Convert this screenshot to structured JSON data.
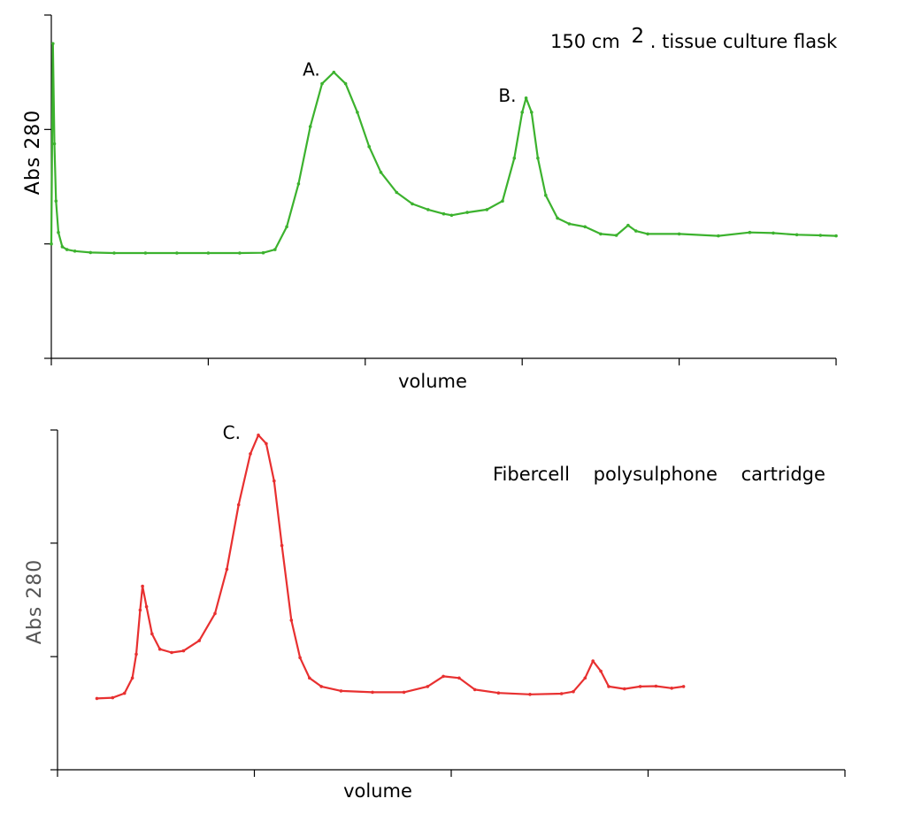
{
  "chart_data": [
    {
      "type": "line",
      "ylabel": "Abs 280",
      "xlabel": "volume",
      "annotation": {
        "text_prefix": "150 cm",
        "superscript": "2",
        "text_suffix": ". tissue culture flask"
      },
      "peak_labels": [
        {
          "label": "A.",
          "x": 0.365,
          "y": 0.8
        },
        {
          "label": "B.",
          "x": 0.615,
          "y": 0.71
        }
      ],
      "xlim": [
        0,
        1
      ],
      "ylim": [
        -0.2,
        1.0
      ],
      "x_ticks": [
        0,
        0.2,
        0.4,
        0.6,
        0.8,
        1.0
      ],
      "y_ticks": [
        -0.2,
        0.2,
        0.6,
        1.0
      ],
      "grid": false,
      "series": [
        {
          "color": "#3cb22e",
          "points": [
            [
              0.0,
              0.2
            ],
            [
              0.002,
              0.9
            ],
            [
              0.004,
              0.55
            ],
            [
              0.006,
              0.35
            ],
            [
              0.009,
              0.24
            ],
            [
              0.014,
              0.19
            ],
            [
              0.02,
              0.18
            ],
            [
              0.03,
              0.175
            ],
            [
              0.05,
              0.17
            ],
            [
              0.08,
              0.168
            ],
            [
              0.12,
              0.168
            ],
            [
              0.16,
              0.168
            ],
            [
              0.2,
              0.168
            ],
            [
              0.24,
              0.168
            ],
            [
              0.27,
              0.169
            ],
            [
              0.285,
              0.18
            ],
            [
              0.3,
              0.26
            ],
            [
              0.315,
              0.41
            ],
            [
              0.33,
              0.61
            ],
            [
              0.345,
              0.76
            ],
            [
              0.36,
              0.8
            ],
            [
              0.375,
              0.76
            ],
            [
              0.39,
              0.66
            ],
            [
              0.405,
              0.54
            ],
            [
              0.42,
              0.45
            ],
            [
              0.44,
              0.38
            ],
            [
              0.46,
              0.34
            ],
            [
              0.48,
              0.32
            ],
            [
              0.5,
              0.305
            ],
            [
              0.51,
              0.3
            ],
            [
              0.53,
              0.31
            ],
            [
              0.555,
              0.32
            ],
            [
              0.575,
              0.35
            ],
            [
              0.59,
              0.5
            ],
            [
              0.6,
              0.66
            ],
            [
              0.605,
              0.71
            ],
            [
              0.612,
              0.66
            ],
            [
              0.62,
              0.5
            ],
            [
              0.63,
              0.37
            ],
            [
              0.645,
              0.29
            ],
            [
              0.66,
              0.27
            ],
            [
              0.68,
              0.26
            ],
            [
              0.7,
              0.235
            ],
            [
              0.72,
              0.23
            ],
            [
              0.735,
              0.265
            ],
            [
              0.745,
              0.245
            ],
            [
              0.76,
              0.235
            ],
            [
              0.8,
              0.235
            ],
            [
              0.85,
              0.228
            ],
            [
              0.89,
              0.24
            ],
            [
              0.92,
              0.238
            ],
            [
              0.95,
              0.232
            ],
            [
              0.98,
              0.23
            ],
            [
              1.0,
              0.228
            ]
          ]
        }
      ]
    },
    {
      "type": "line",
      "ylabel": "Abs 280",
      "xlabel": "volume",
      "annotation": {
        "text": "Fibercell    polysulphone    cartridge"
      },
      "peak_labels": [
        {
          "label": "C.",
          "x": 0.255,
          "y": 0.985
        }
      ],
      "xlim": [
        0,
        1
      ],
      "ylim": [
        0,
        1.0
      ],
      "x_ticks": [
        0,
        0.25,
        0.5,
        0.75,
        1.0
      ],
      "y_ticks": [
        0,
        0.333,
        0.667,
        1.0
      ],
      "grid": false,
      "series": [
        {
          "color": "#e83030",
          "points": [
            [
              0.05,
              0.21
            ],
            [
              0.07,
              0.212
            ],
            [
              0.085,
              0.225
            ],
            [
              0.095,
              0.27
            ],
            [
              0.1,
              0.34
            ],
            [
              0.105,
              0.47
            ],
            [
              0.108,
              0.54
            ],
            [
              0.113,
              0.48
            ],
            [
              0.12,
              0.4
            ],
            [
              0.13,
              0.355
            ],
            [
              0.145,
              0.345
            ],
            [
              0.16,
              0.35
            ],
            [
              0.18,
              0.38
            ],
            [
              0.2,
              0.46
            ],
            [
              0.215,
              0.59
            ],
            [
              0.23,
              0.78
            ],
            [
              0.245,
              0.93
            ],
            [
              0.255,
              0.985
            ],
            [
              0.265,
              0.96
            ],
            [
              0.275,
              0.85
            ],
            [
              0.285,
              0.66
            ],
            [
              0.297,
              0.44
            ],
            [
              0.308,
              0.33
            ],
            [
              0.32,
              0.27
            ],
            [
              0.335,
              0.245
            ],
            [
              0.36,
              0.232
            ],
            [
              0.4,
              0.228
            ],
            [
              0.44,
              0.228
            ],
            [
              0.47,
              0.245
            ],
            [
              0.49,
              0.275
            ],
            [
              0.51,
              0.27
            ],
            [
              0.53,
              0.236
            ],
            [
              0.56,
              0.226
            ],
            [
              0.6,
              0.222
            ],
            [
              0.64,
              0.224
            ],
            [
              0.655,
              0.23
            ],
            [
              0.67,
              0.27
            ],
            [
              0.68,
              0.32
            ],
            [
              0.69,
              0.29
            ],
            [
              0.7,
              0.245
            ],
            [
              0.72,
              0.238
            ],
            [
              0.74,
              0.245
            ],
            [
              0.76,
              0.246
            ],
            [
              0.78,
              0.24
            ],
            [
              0.795,
              0.245
            ]
          ]
        }
      ]
    }
  ]
}
